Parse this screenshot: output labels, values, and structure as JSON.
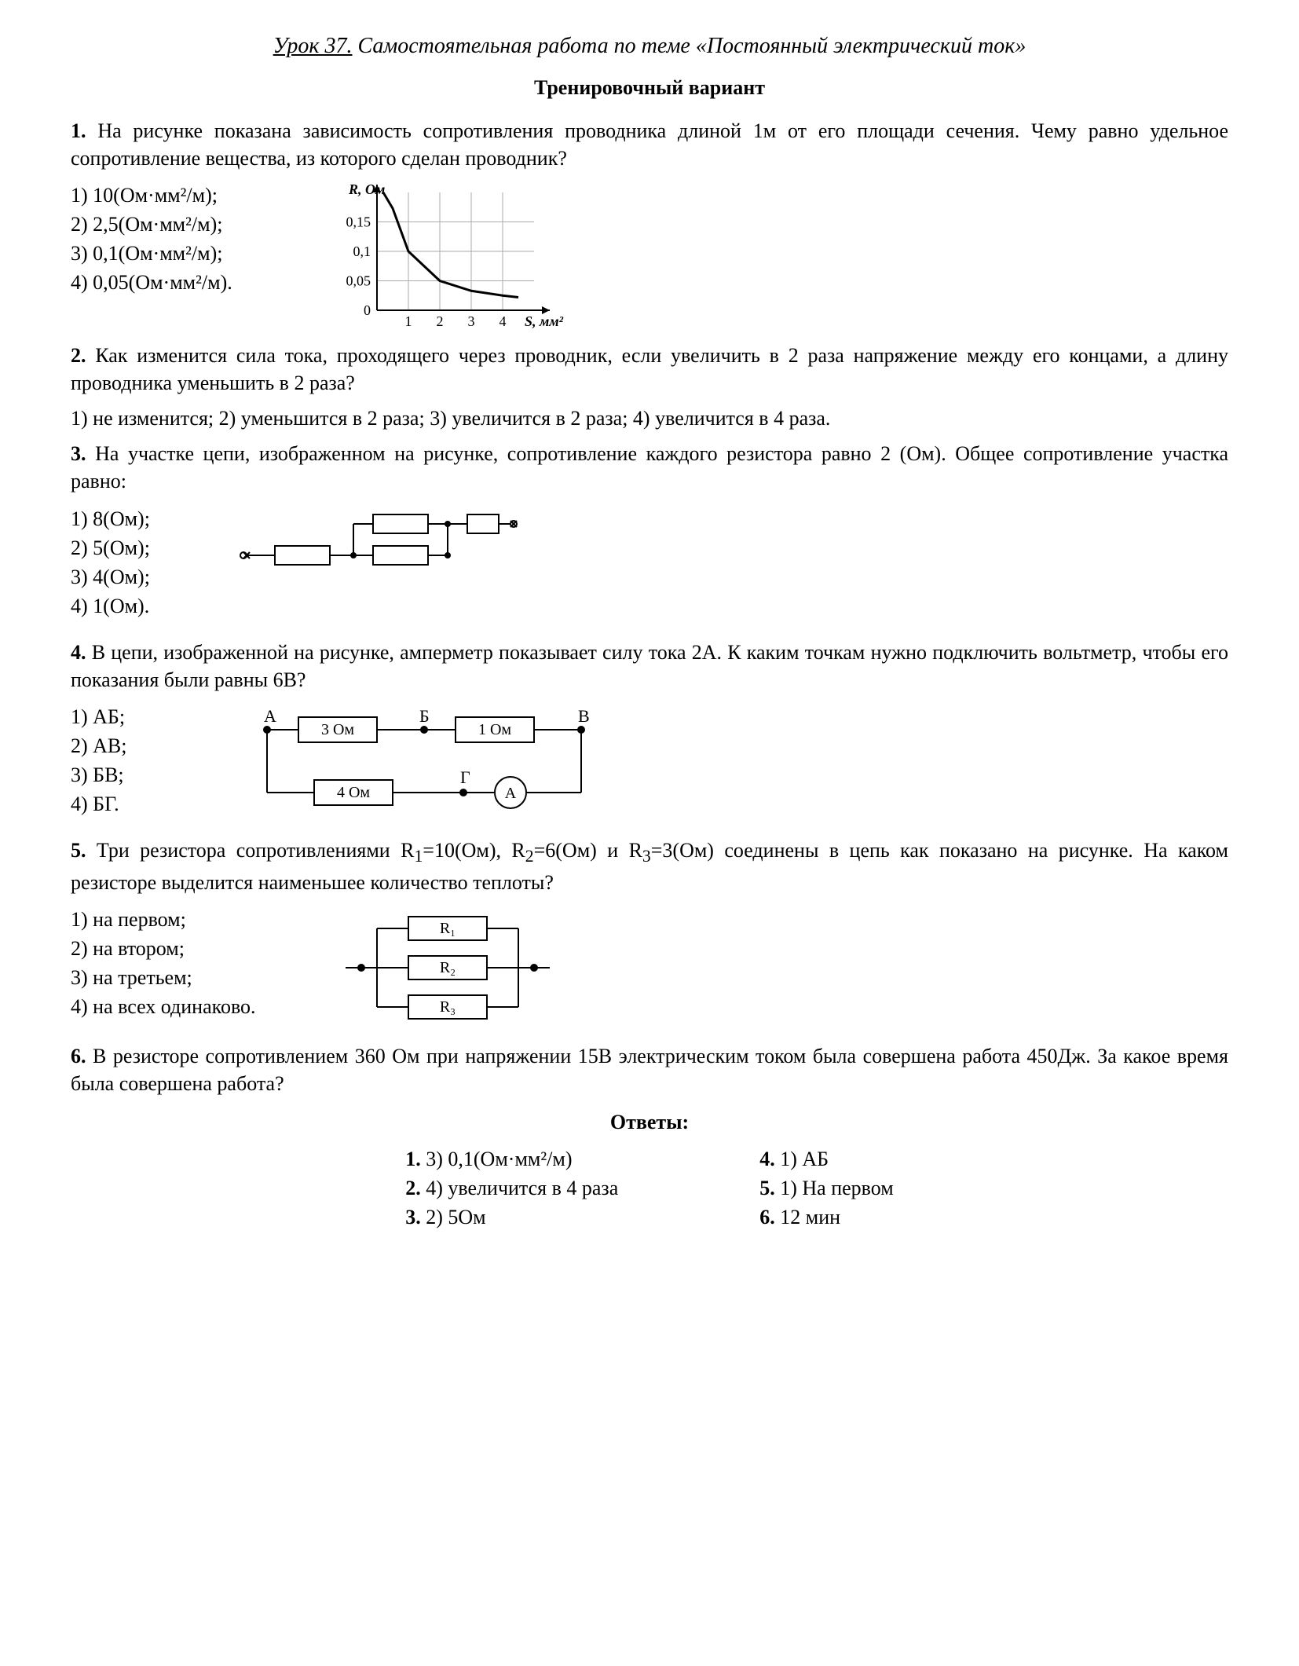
{
  "title": {
    "lesson": "Урок 37.",
    "rest": " Самостоятельная работа по теме «Постоянный электрический ток»"
  },
  "subtitle": "Тренировочный вариант",
  "q1": {
    "text": "На рисунке показана зависимость сопротивления проводника длиной 1м от его площади сечения. Чему равно удельное сопротивление вещества, из которого сделан проводник?",
    "opts": [
      "1) 10(Ом·мм²/м);",
      "2) 2,5(Ом·мм²/м);",
      "3) 0,1(Ом·мм²/м);",
      "4) 0,05(Ом·мм²/м)."
    ],
    "chart": {
      "ylabel": "R, Ом",
      "xlabel": "S, мм²",
      "xticks": [
        "1",
        "2",
        "3",
        "4"
      ],
      "yticks": [
        "0",
        "0,05",
        "0,1",
        "0,15"
      ],
      "curve": [
        [
          0.2,
          0.2
        ],
        [
          0.5,
          0.173
        ],
        [
          1,
          0.1
        ],
        [
          2,
          0.05
        ],
        [
          3,
          0.033
        ],
        [
          4,
          0.025
        ],
        [
          4.5,
          0.022
        ]
      ],
      "grid_color": "#aaaaaa",
      "axis_color": "#000000",
      "curve_color": "#000000",
      "curve_width": 3,
      "bg": "#ffffff"
    }
  },
  "q2": {
    "text": "Как изменится сила тока, проходящего через проводник, если увеличить в 2 раза напряжение между его концами, а длину проводника уменьшить в 2 раза?",
    "opts_inline": "1) не изменится; 2) уменьшится в 2 раза; 3) увеличится в 2 раза; 4) увеличится в 4 раза."
  },
  "q3": {
    "text": "На участке цепи, изображенном на рисунке, сопротивление каждого резистора равно 2 (Ом). Общее сопротивление участка равно:",
    "opts": [
      "1) 8(Ом);",
      "2) 5(Ом);",
      "3) 4(Ом);",
      "4) 1(Ом)."
    ]
  },
  "q4": {
    "text": "В цепи, изображенной на рисунке, амперметр показывает силу тока 2А. К каким точкам нужно подключить вольтметр, чтобы его показания были равны 6В?",
    "opts": [
      "1) АБ;",
      "2) АВ;",
      "3) БВ;",
      "4) БГ."
    ],
    "labels": {
      "A": "А",
      "B": "Б",
      "V": "В",
      "G": "Г",
      "r3": "3 Ом",
      "r1": "1 Ом",
      "r4": "4 Ом",
      "amm": "А"
    }
  },
  "q5": {
    "text_a": "Три резистора сопротивлениями R",
    "text_b": "=10(Ом), R",
    "text_c": "=6(Ом) и R",
    "text_d": "=3(Ом) соединены в цепь как показано на рисунке. На каком резисторе выделится наименьшее количество теплоты?",
    "opts": [
      "1) на первом;",
      "2) на втором;",
      "3) на третьем;",
      "4) на всех одинаково."
    ],
    "labels": {
      "r1": "R₁",
      "r2": "R₂",
      "r3": "R₃"
    }
  },
  "q6": {
    "text": "В резисторе сопротивлением 360 Ом при напряжении 15В электрическим током была совершена работа 450Дж. За какое время была совершена работа?"
  },
  "answers_title": "Ответы:",
  "answers": {
    "left": [
      {
        "n": "1.",
        "t": " 3) 0,1(Ом·мм²/м)"
      },
      {
        "n": "2.",
        "t": " 4) увеличится в 4 раза"
      },
      {
        "n": "3.",
        "t": " 2) 5Ом"
      }
    ],
    "right": [
      {
        "n": "4.",
        "t": " 1) АБ"
      },
      {
        "n": "5.",
        "t": " 1) На первом"
      },
      {
        "n": "6.",
        "t": " 12 мин"
      }
    ]
  }
}
